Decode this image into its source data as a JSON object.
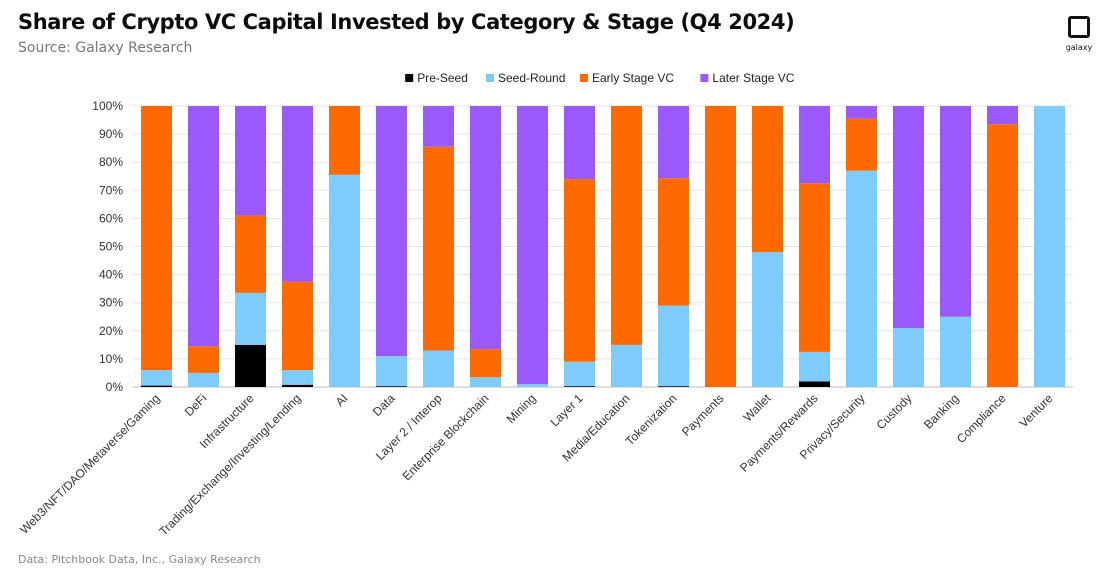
{
  "header": {
    "title": "Share of Crypto VC Capital Invested by Category & Stage (Q4 2024)",
    "subtitle": "Source: Galaxy Research",
    "logo_text": "galaxy"
  },
  "footer": {
    "note": "Data: Pitchbook Data, Inc., Galaxy Research"
  },
  "chart_data": {
    "type": "bar",
    "stacked": true,
    "title": "Share of Crypto VC Capital Invested by Category & Stage (Q4 2024)",
    "xlabel": "",
    "ylabel": "",
    "ylim": [
      0,
      100
    ],
    "grid": true,
    "legend_position": "top-center",
    "y_ticks": [
      "0%",
      "10%",
      "20%",
      "30%",
      "40%",
      "50%",
      "60%",
      "70%",
      "80%",
      "90%",
      "100%"
    ],
    "categories": [
      "Web3/NFT/DAO/Metaverse/Gaming",
      "DeFi",
      "Infrastructure",
      "Trading/Exchange/Investing/Lending",
      "AI",
      "Data",
      "Layer 2 / Interop",
      "Enterprise Blockchain",
      "Mining",
      "Layer 1",
      "Media/Education",
      "Tokenization",
      "Payments",
      "Wallet",
      "Payments/Rewards",
      "Privacy/Security",
      "Custody",
      "Banking",
      "Compliance",
      "Venture"
    ],
    "series": [
      {
        "name": "Pre-Seed",
        "color": "#000000",
        "values": [
          0.5,
          0,
          15,
          0.8,
          0,
          0.3,
          0,
          0,
          0,
          0.3,
          0,
          0.3,
          0,
          0,
          2,
          0,
          0,
          0,
          0,
          0
        ]
      },
      {
        "name": "Seed-Round",
        "color": "#7ecbfd",
        "values": [
          5.5,
          5,
          18.5,
          5.2,
          75.5,
          10.7,
          13,
          3.5,
          1,
          8.7,
          15,
          28.7,
          0,
          48,
          10.5,
          77,
          21,
          25,
          0,
          100
        ]
      },
      {
        "name": "Early Stage VC",
        "color": "#ff6a00",
        "values": [
          94,
          9.5,
          27.5,
          31.5,
          24.5,
          0,
          72.5,
          10,
          0,
          65,
          85,
          45.3,
          100,
          52,
          60,
          18.5,
          0,
          0,
          93.5,
          0
        ]
      },
      {
        "name": "Later Stage VC",
        "color": "#9b59fb",
        "values": [
          0,
          85.5,
          39,
          62.5,
          0,
          89,
          14.5,
          86.5,
          99,
          26,
          0,
          25.7,
          0,
          0,
          27.5,
          4.5,
          79,
          75,
          6.5,
          0
        ]
      }
    ]
  }
}
